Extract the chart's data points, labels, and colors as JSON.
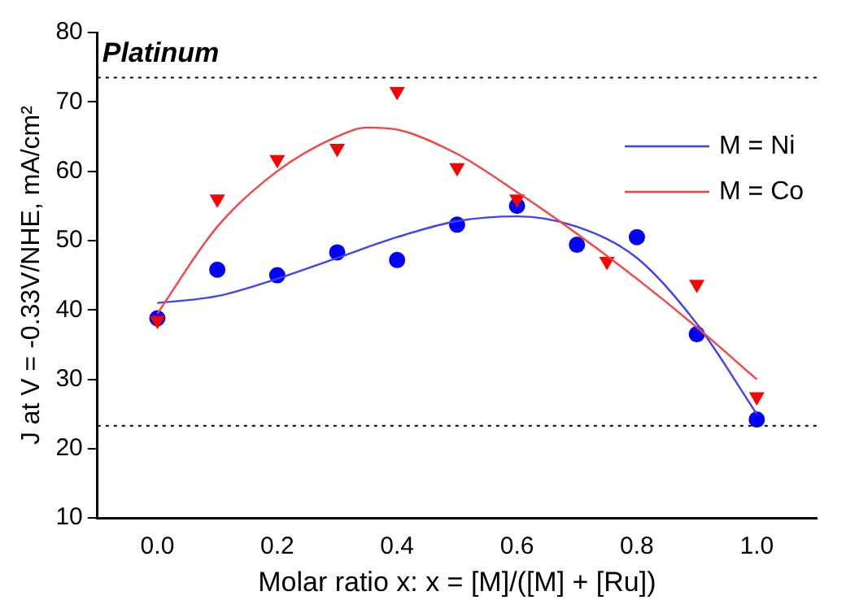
{
  "chart_data": {
    "type": "scatter",
    "xlabel": "Molar ratio x: x = [M]/([M] + [Ru])",
    "ylabel": "J at V = -0.33V/NHE, mA/cm²",
    "xlim": [
      -0.1,
      1.1
    ],
    "xticks": [
      {
        "value": 0,
        "label": "0.0"
      },
      {
        "value": 0.2,
        "label": "0.2"
      },
      {
        "value": 0.4,
        "label": "0.4"
      },
      {
        "value": 0.6,
        "label": "0.6"
      },
      {
        "value": 0.8,
        "label": "0.8"
      },
      {
        "value": 1,
        "label": "1.0"
      }
    ],
    "ylim": [
      10,
      80
    ],
    "yticks": [
      10,
      20,
      30,
      40,
      50,
      60,
      70,
      80
    ],
    "grid": false,
    "legend": "top right",
    "series": [
      {
        "marker": "circle",
        "color": "#0000ff",
        "x": [
          0,
          0.1,
          0.2,
          0.3,
          0.4,
          0.5,
          0.6,
          0.7,
          0.8,
          0.9,
          1.0
        ],
        "values": [
          38.8,
          45.8,
          45,
          48.3,
          47.2,
          52.3,
          55,
          49.4,
          50.5,
          36.5,
          24.2
        ]
      },
      {
        "marker": "triangle",
        "color": "#ff0000",
        "x": [
          0,
          0.1,
          0.2,
          0.3,
          0.4,
          0.5,
          0.6,
          0.75,
          0.9,
          1.0
        ],
        "values": [
          38.5,
          56,
          61.7,
          63.3,
          71.5,
          60.5,
          56,
          47,
          43.7,
          27.5
        ]
      },
      {
        "type": "line",
        "name": "M = Ni",
        "marker": "none",
        "color": "#4040ff",
        "x": [
          0,
          0.1,
          0.2,
          0.3,
          0.4,
          0.5,
          0.6,
          0.7,
          0.8,
          0.9,
          1.0
        ],
        "values": [
          41,
          42,
          44.5,
          47.5,
          50.5,
          52.8,
          53.5,
          52,
          47.5,
          38,
          25
        ]
      },
      {
        "type": "line",
        "name": "M = Co",
        "marker": "none",
        "color": "#ff4040",
        "x": [
          0,
          0.1,
          0.2,
          0.3,
          0.35,
          0.4,
          0.5,
          0.6,
          0.7,
          0.8,
          0.9,
          1.0
        ],
        "values": [
          39.5,
          52,
          60,
          65,
          66.3,
          66,
          62.5,
          57,
          51,
          44.5,
          37.5,
          30
        ]
      }
    ],
    "ref_lines": [
      {
        "axis": "y",
        "value": 73.5,
        "label": "Platinum",
        "color": "#000000",
        "line_style": "dotted"
      },
      {
        "axis": "y",
        "value": 23.3,
        "color": "#000000",
        "line_style": "dotted"
      }
    ]
  }
}
